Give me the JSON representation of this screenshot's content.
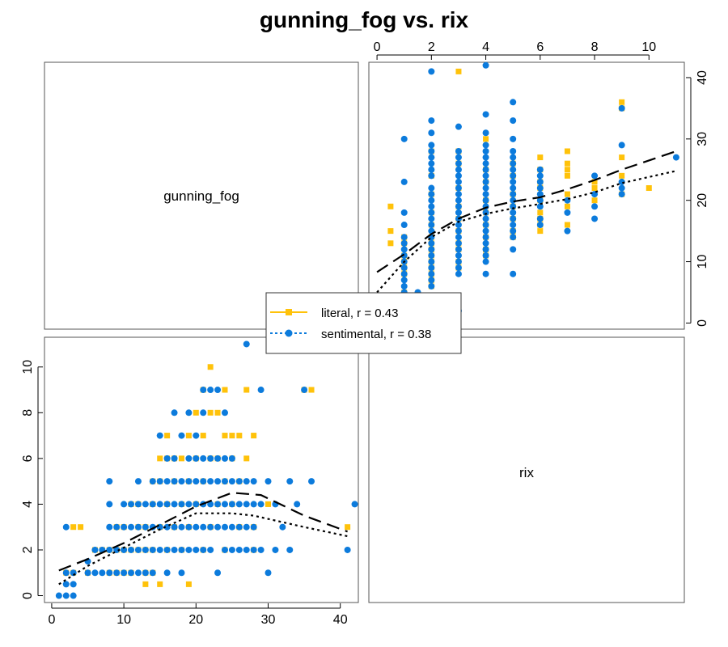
{
  "title": "gunning_fog vs. rix",
  "colors": {
    "literal": "#FFC20A",
    "sentimental": "#0C7BDC",
    "axis": "#000000",
    "panel_border": "#555555"
  },
  "chart_data": {
    "type": "scatter",
    "subtype": "scatterplot-matrix",
    "title": "gunning_fog vs. rix",
    "variables": [
      "gunning_fog",
      "rix"
    ],
    "axes": {
      "gunning_fog": {
        "range": [
          -1,
          42.5
        ],
        "ticks": [
          "0",
          "10",
          "20",
          "30",
          "40"
        ]
      },
      "rix": {
        "range": [
          -0.3,
          11.3
        ],
        "ticks": [
          "0",
          "2",
          "4",
          "6",
          "8",
          "10"
        ]
      }
    },
    "grid": false,
    "legend_placement": "center",
    "series": [
      {
        "name": "literal, r = 0.43",
        "marker": "square",
        "line": "long-dash",
        "color": "#FFC20A",
        "points": [
          [
            3,
            3
          ],
          [
            4,
            3
          ],
          [
            5,
            1
          ],
          [
            6,
            2
          ],
          [
            7,
            2
          ],
          [
            8,
            1
          ],
          [
            8,
            2
          ],
          [
            9,
            1
          ],
          [
            9,
            2
          ],
          [
            9,
            3
          ],
          [
            10,
            1
          ],
          [
            10,
            2
          ],
          [
            10,
            3
          ],
          [
            11,
            1
          ],
          [
            11,
            2
          ],
          [
            11,
            4
          ],
          [
            12,
            2
          ],
          [
            12,
            3
          ],
          [
            12,
            4
          ],
          [
            13,
            1
          ],
          [
            13,
            2
          ],
          [
            13,
            3
          ],
          [
            14,
            1
          ],
          [
            14,
            2
          ],
          [
            14,
            4
          ],
          [
            14,
            5
          ],
          [
            15,
            0.5
          ],
          [
            15,
            3
          ],
          [
            15,
            5
          ],
          [
            15,
            6
          ],
          [
            16,
            2
          ],
          [
            16,
            4
          ],
          [
            16,
            6
          ],
          [
            16,
            7
          ],
          [
            17,
            3
          ],
          [
            17,
            5
          ],
          [
            17,
            6
          ],
          [
            18,
            2
          ],
          [
            18,
            4
          ],
          [
            18,
            6
          ],
          [
            19,
            3
          ],
          [
            19,
            5
          ],
          [
            19,
            7
          ],
          [
            20,
            4
          ],
          [
            20,
            6
          ],
          [
            20,
            8
          ],
          [
            21,
            2
          ],
          [
            21,
            5
          ],
          [
            21,
            7
          ],
          [
            21,
            9
          ],
          [
            22,
            3
          ],
          [
            22,
            6
          ],
          [
            22,
            8
          ],
          [
            22,
            10
          ],
          [
            23,
            4
          ],
          [
            23,
            6
          ],
          [
            23,
            8
          ],
          [
            24,
            5
          ],
          [
            24,
            7
          ],
          [
            24,
            9
          ],
          [
            25,
            4
          ],
          [
            25,
            6
          ],
          [
            25,
            7
          ],
          [
            26,
            3
          ],
          [
            26,
            5
          ],
          [
            26,
            7
          ],
          [
            27,
            6
          ],
          [
            27,
            9
          ],
          [
            28,
            3
          ],
          [
            28,
            7
          ],
          [
            30,
            4
          ],
          [
            35,
            9
          ],
          [
            36,
            9
          ],
          [
            41,
            3
          ],
          [
            2,
            1
          ],
          [
            3,
            1
          ],
          [
            13,
            0.5
          ],
          [
            19,
            0.5
          ],
          [
            24,
            2
          ],
          [
            28,
            2
          ]
        ],
        "lowess": [
          [
            1,
            1.1
          ],
          [
            5,
            1.6
          ],
          [
            10,
            2.3
          ],
          [
            15,
            3.1
          ],
          [
            20,
            3.9
          ],
          [
            25,
            4.5
          ],
          [
            29,
            4.4
          ],
          [
            35,
            3.5
          ],
          [
            41,
            2.8
          ]
        ]
      },
      {
        "name": "sentimental, r = 0.38",
        "marker": "circle",
        "line": "dotted",
        "color": "#0C7BDC",
        "points": [
          [
            1,
            0
          ],
          [
            2,
            0
          ],
          [
            3,
            0
          ],
          [
            2,
            0.5
          ],
          [
            3,
            0.5
          ],
          [
            2,
            1
          ],
          [
            3,
            1
          ],
          [
            2,
            3
          ],
          [
            5,
            1.5
          ],
          [
            5,
            1
          ],
          [
            6,
            2
          ],
          [
            6,
            1
          ],
          [
            7,
            1
          ],
          [
            7,
            2
          ],
          [
            8,
            1
          ],
          [
            8,
            2
          ],
          [
            8,
            3
          ],
          [
            8,
            4
          ],
          [
            8,
            5
          ],
          [
            9,
            1
          ],
          [
            9,
            2
          ],
          [
            9,
            3
          ],
          [
            10,
            1
          ],
          [
            10,
            2
          ],
          [
            10,
            3
          ],
          [
            10,
            4
          ],
          [
            11,
            1
          ],
          [
            11,
            2
          ],
          [
            11,
            3
          ],
          [
            11,
            4
          ],
          [
            12,
            1
          ],
          [
            12,
            2
          ],
          [
            12,
            3
          ],
          [
            12,
            4
          ],
          [
            12,
            5
          ],
          [
            13,
            1
          ],
          [
            13,
            2
          ],
          [
            13,
            3
          ],
          [
            13,
            4
          ],
          [
            14,
            1
          ],
          [
            14,
            2
          ],
          [
            14,
            3
          ],
          [
            14,
            4
          ],
          [
            14,
            5
          ],
          [
            15,
            2
          ],
          [
            15,
            3
          ],
          [
            15,
            4
          ],
          [
            15,
            5
          ],
          [
            15,
            7
          ],
          [
            16,
            1
          ],
          [
            16,
            2
          ],
          [
            16,
            3
          ],
          [
            16,
            4
          ],
          [
            16,
            5
          ],
          [
            16,
            6
          ],
          [
            17,
            2
          ],
          [
            17,
            3
          ],
          [
            17,
            4
          ],
          [
            17,
            5
          ],
          [
            17,
            6
          ],
          [
            17,
            8
          ],
          [
            18,
            1
          ],
          [
            18,
            2
          ],
          [
            18,
            3
          ],
          [
            18,
            4
          ],
          [
            18,
            5
          ],
          [
            18,
            7
          ],
          [
            19,
            2
          ],
          [
            19,
            3
          ],
          [
            19,
            4
          ],
          [
            19,
            5
          ],
          [
            19,
            6
          ],
          [
            19,
            8
          ],
          [
            20,
            2
          ],
          [
            20,
            3
          ],
          [
            20,
            4
          ],
          [
            20,
            5
          ],
          [
            20,
            6
          ],
          [
            20,
            7
          ],
          [
            21,
            2
          ],
          [
            21,
            3
          ],
          [
            21,
            4
          ],
          [
            21,
            5
          ],
          [
            21,
            6
          ],
          [
            21,
            8
          ],
          [
            21,
            9
          ],
          [
            22,
            2
          ],
          [
            22,
            3
          ],
          [
            22,
            4
          ],
          [
            22,
            5
          ],
          [
            22,
            6
          ],
          [
            22,
            9
          ],
          [
            23,
            1
          ],
          [
            23,
            3
          ],
          [
            23,
            4
          ],
          [
            23,
            5
          ],
          [
            23,
            6
          ],
          [
            23,
            9
          ],
          [
            24,
            2
          ],
          [
            24,
            3
          ],
          [
            24,
            4
          ],
          [
            24,
            5
          ],
          [
            24,
            6
          ],
          [
            24,
            8
          ],
          [
            25,
            2
          ],
          [
            25,
            3
          ],
          [
            25,
            4
          ],
          [
            25,
            5
          ],
          [
            25,
            6
          ],
          [
            26,
            2
          ],
          [
            26,
            3
          ],
          [
            26,
            4
          ],
          [
            26,
            5
          ],
          [
            27,
            2
          ],
          [
            27,
            3
          ],
          [
            27,
            4
          ],
          [
            27,
            5
          ],
          [
            27,
            11
          ],
          [
            28,
            2
          ],
          [
            28,
            3
          ],
          [
            28,
            4
          ],
          [
            28,
            5
          ],
          [
            29,
            2
          ],
          [
            29,
            4
          ],
          [
            29,
            9
          ],
          [
            30,
            1
          ],
          [
            30,
            5
          ],
          [
            31,
            2
          ],
          [
            31,
            4
          ],
          [
            32,
            3
          ],
          [
            33,
            2
          ],
          [
            33,
            5
          ],
          [
            34,
            4
          ],
          [
            35,
            9
          ],
          [
            36,
            5
          ],
          [
            41,
            2
          ],
          [
            42,
            4
          ]
        ],
        "lowess": [
          [
            1,
            0.5
          ],
          [
            5,
            1.3
          ],
          [
            10,
            2.1
          ],
          [
            15,
            2.9
          ],
          [
            20,
            3.6
          ],
          [
            25,
            3.6
          ],
          [
            28,
            3.5
          ],
          [
            35,
            3.0
          ],
          [
            41,
            2.6
          ]
        ]
      }
    ],
    "panels": [
      {
        "position": "top-left",
        "label": "gunning_fog"
      },
      {
        "position": "top-right",
        "x": "rix",
        "y": "gunning_fog"
      },
      {
        "position": "bottom-left",
        "x": "gunning_fog",
        "y": "rix"
      },
      {
        "position": "bottom-right",
        "label": "rix"
      }
    ]
  }
}
